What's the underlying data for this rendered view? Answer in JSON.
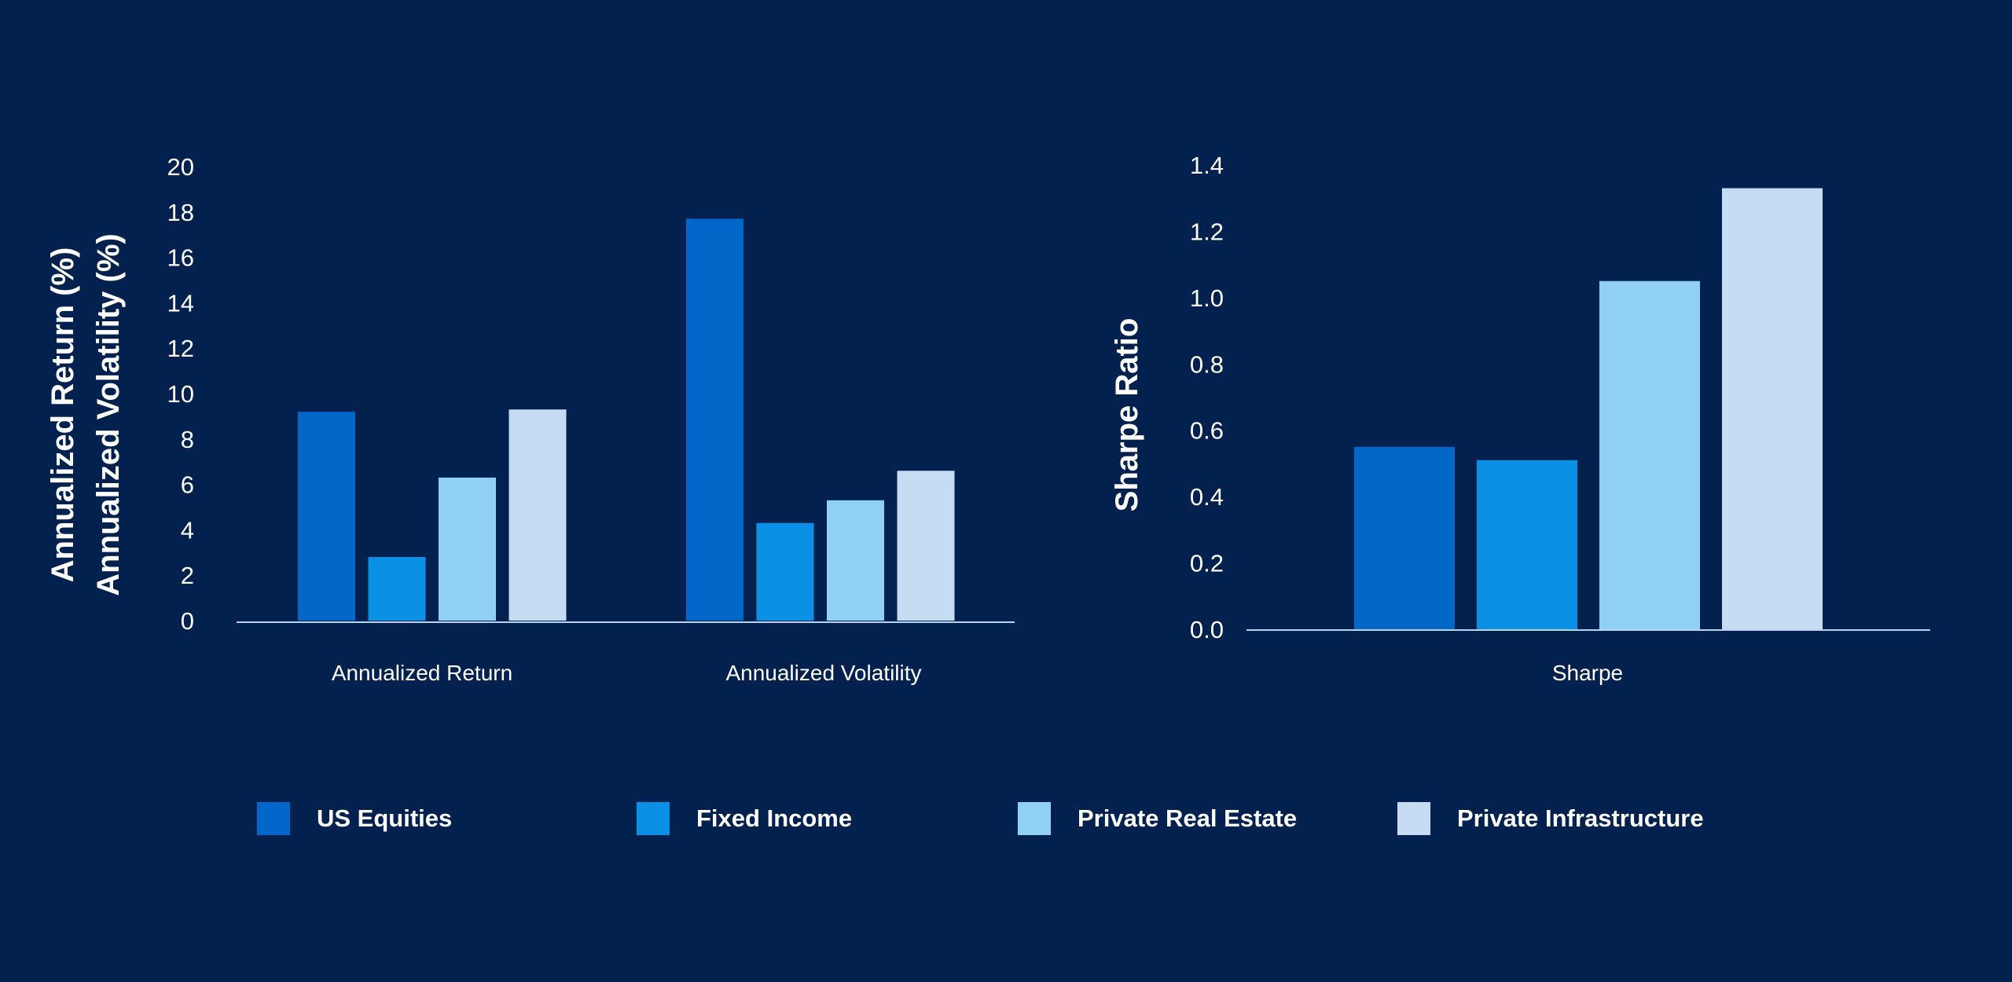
{
  "colors": {
    "background": "#03214f",
    "axis": "#b9d3f0",
    "series": [
      "#0367c9",
      "#0a91e6",
      "#90d0f5",
      "#c6dcf2"
    ]
  },
  "legend": {
    "items": [
      {
        "label": "US Equities",
        "color": "#0367c9"
      },
      {
        "label": "Fixed Income",
        "color": "#0a91e6"
      },
      {
        "label": "Private Real Estate",
        "color": "#90d0f5"
      },
      {
        "label": "Private Infrastructure",
        "color": "#c6dcf2"
      }
    ]
  },
  "chart_data": [
    {
      "type": "bar",
      "title": "",
      "ylabel": [
        "Annualized Return (%)",
        "Annualized Volatility (%)"
      ],
      "xlabel": "",
      "categories": [
        "Annualized Return",
        "Annualized Volatility"
      ],
      "series": [
        {
          "name": "US Equities",
          "values": [
            9.2,
            17.7
          ]
        },
        {
          "name": "Fixed Income",
          "values": [
            2.8,
            4.3
          ]
        },
        {
          "name": "Private Real Estate",
          "values": [
            6.3,
            5.3
          ]
        },
        {
          "name": "Private Infrastructure",
          "values": [
            9.3,
            6.6
          ]
        }
      ],
      "ylim": [
        0,
        20
      ],
      "yticks": [
        "0",
        "2",
        "4",
        "6",
        "8",
        "10",
        "12",
        "14",
        "16",
        "18",
        "20"
      ],
      "grid": false,
      "legend": "bottom"
    },
    {
      "type": "bar",
      "title": "",
      "ylabel": "Sharpe Ratio",
      "xlabel": "",
      "categories": [
        "Sharpe"
      ],
      "series": [
        {
          "name": "US Equities",
          "values": [
            0.55
          ]
        },
        {
          "name": "Fixed Income",
          "values": [
            0.51
          ]
        },
        {
          "name": "Private Real Estate",
          "values": [
            1.05
          ]
        },
        {
          "name": "Private Infrastructure",
          "values": [
            1.33
          ]
        }
      ],
      "ylim": [
        0,
        1.4
      ],
      "yticks": [
        "0.0",
        "0.2",
        "0.4",
        "0.6",
        "0.8",
        "1.0",
        "1.2",
        "1.4"
      ],
      "grid": false,
      "legend": "bottom"
    }
  ]
}
